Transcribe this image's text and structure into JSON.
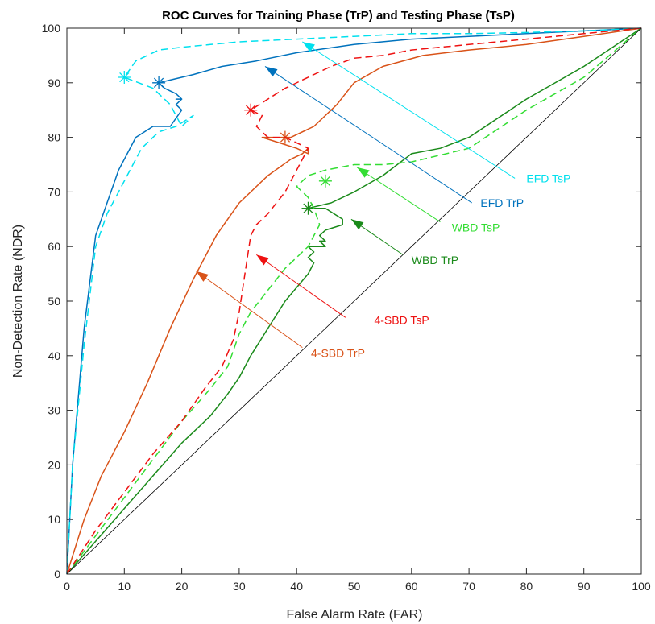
{
  "chart_data": {
    "type": "line",
    "title": "ROC Curves for Training Phase (TrP) and Testing Phase (TsP)",
    "xlabel": "False Alarm Rate (FAR)",
    "ylabel": "Non-Detection Rate (NDR)",
    "xlim": [
      0,
      100
    ],
    "ylim": [
      0,
      100
    ],
    "xticks": [
      0,
      10,
      20,
      30,
      40,
      50,
      60,
      70,
      80,
      90,
      100
    ],
    "yticks": [
      0,
      10,
      20,
      30,
      40,
      50,
      60,
      70,
      80,
      90,
      100
    ],
    "grid": false,
    "legend": "none",
    "series": [
      {
        "name": "EFD TrP",
        "color": "#0072bd",
        "dash": "solid",
        "x": [
          0,
          1,
          3,
          5,
          7,
          9,
          12,
          15,
          18,
          20,
          19,
          20,
          19,
          20,
          19,
          17,
          16,
          18,
          22,
          27,
          33,
          40,
          50,
          60,
          70,
          80,
          90,
          100
        ],
        "y": [
          0,
          20,
          45,
          62,
          68,
          74,
          80,
          82,
          82,
          85,
          86,
          87,
          87,
          87,
          88,
          89,
          90,
          90.5,
          91.5,
          93,
          94,
          95.5,
          97,
          98,
          98.5,
          99,
          99.5,
          100
        ],
        "marker": {
          "x": 16,
          "y": 90
        },
        "label": {
          "text": "EFD TrP",
          "x": 72,
          "y": 68
        },
        "arrow": {
          "from_x": 70.5,
          "from_y": 68,
          "to_x": 34.5,
          "to_y": 93
        }
      },
      {
        "name": "EFD TsP",
        "color": "#00e0ee",
        "dash": "dashed",
        "x": [
          0,
          1,
          3,
          5,
          7,
          10,
          13,
          16,
          19,
          22,
          20,
          18,
          15,
          10,
          12,
          16,
          20,
          25,
          30,
          40,
          50,
          60,
          70,
          80,
          90,
          100
        ],
        "y": [
          0,
          20,
          42,
          60,
          66,
          72,
          78,
          81,
          82,
          84,
          82,
          86,
          89,
          91,
          94,
          96,
          96.5,
          97,
          97.5,
          98,
          98.5,
          99,
          99,
          99.2,
          99.5,
          100
        ],
        "marker": {
          "x": 10,
          "y": 91
        },
        "label": {
          "text": "EFD TsP",
          "x": 80,
          "y": 72.5
        },
        "arrow": {
          "from_x": 78,
          "from_y": 72.5,
          "to_x": 41,
          "to_y": 97.5
        }
      },
      {
        "name": "WBD TrP",
        "color": "#1a8a1a",
        "dash": "solid",
        "x": [
          0,
          5,
          10,
          15,
          20,
          25,
          28,
          30,
          32,
          35,
          38,
          42,
          43,
          42,
          43,
          42,
          45,
          44,
          45,
          44,
          45,
          48,
          48,
          45,
          42,
          46,
          50,
          55,
          60,
          65,
          70,
          80,
          90,
          100
        ],
        "y": [
          0,
          6,
          12,
          18,
          24,
          29,
          33,
          36,
          40,
          45,
          50,
          55,
          57,
          58,
          59,
          60,
          60,
          61,
          61,
          62,
          63,
          64,
          65,
          67,
          67,
          68,
          70,
          73,
          77,
          78,
          80,
          87,
          93,
          100
        ],
        "marker": {
          "x": 42,
          "y": 67
        },
        "label": {
          "text": "WBD TrP",
          "x": 60,
          "y": 57.5
        },
        "arrow": {
          "from_x": 58.5,
          "from_y": 58.5,
          "to_x": 49.5,
          "to_y": 65
        }
      },
      {
        "name": "WBD TsP",
        "color": "#33dd33",
        "dash": "dashed",
        "x": [
          0,
          5,
          10,
          15,
          20,
          25,
          28,
          30,
          32,
          35,
          38,
          42,
          44,
          43,
          42,
          41,
          40,
          42,
          45,
          50,
          55,
          60,
          70,
          80,
          90,
          100
        ],
        "y": [
          0,
          7,
          14,
          21,
          28,
          34,
          38,
          44,
          48,
          52,
          56,
          60,
          64,
          67,
          69,
          70,
          71,
          73,
          74,
          75,
          75,
          75.5,
          78,
          85,
          91,
          100
        ],
        "marker": {
          "x": 45,
          "y": 72
        },
        "label": {
          "text": "WBD TsP",
          "x": 67,
          "y": 63.5
        },
        "arrow": {
          "from_x": 65,
          "from_y": 64.5,
          "to_x": 50.5,
          "to_y": 74.5
        }
      },
      {
        "name": "4-SBD TrP",
        "color": "#d95319",
        "dash": "solid",
        "x": [
          0,
          3,
          6,
          10,
          14,
          18,
          22,
          26,
          30,
          35,
          39,
          41,
          42,
          42,
          40,
          37,
          34,
          35,
          39,
          43,
          47,
          50,
          55,
          62,
          70,
          80,
          90,
          100
        ],
        "y": [
          0,
          10,
          18,
          26,
          35,
          45,
          54,
          62,
          68,
          73,
          76,
          77,
          78,
          77,
          78,
          79,
          80,
          80,
          80,
          82,
          86,
          90,
          93,
          95,
          96,
          97,
          98.5,
          100
        ],
        "marker": {
          "x": 38,
          "y": 80
        },
        "label": {
          "text": "4-SBD TrP",
          "x": 42.5,
          "y": 40.5
        },
        "arrow": {
          "from_x": 41,
          "from_y": 41.5,
          "to_x": 22.5,
          "to_y": 55.5
        }
      },
      {
        "name": "4-SBD TsP",
        "color": "#ee1111",
        "dash": "dashed",
        "x": [
          0,
          5,
          10,
          15,
          20,
          24,
          27,
          29,
          30,
          31,
          32,
          33,
          35,
          38,
          40,
          42,
          38,
          35,
          33,
          34,
          32,
          35,
          38,
          42,
          46,
          50,
          55,
          60,
          70,
          80,
          90,
          100
        ],
        "y": [
          0,
          8,
          15,
          22,
          28,
          34,
          38,
          43,
          48,
          55,
          62,
          64,
          66,
          70,
          74,
          78,
          80,
          80,
          82,
          84,
          85,
          87,
          89,
          91,
          93,
          94.5,
          95,
          96,
          97,
          98,
          99,
          100
        ],
        "marker": {
          "x": 32,
          "y": 85
        },
        "label": {
          "text": "4-SBD TsP",
          "x": 53.5,
          "y": 46.5
        },
        "arrow": {
          "from_x": 48.5,
          "from_y": 47,
          "to_x": 33,
          "to_y": 58.5
        }
      },
      {
        "name": "",
        "color": "#000000",
        "dash": "solid",
        "thin": true,
        "x": [
          0,
          100
        ],
        "y": [
          0,
          100
        ]
      }
    ]
  }
}
